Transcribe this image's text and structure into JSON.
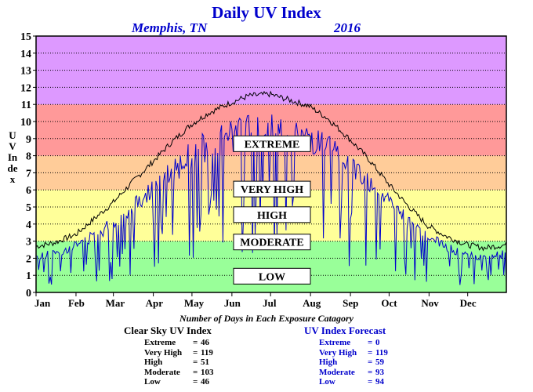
{
  "title": "Daily UV Index",
  "location": "Memphis, TN",
  "year": "2016",
  "ylabel": "UV Index",
  "counts_title": "Number of Days in Each Exposure Catagory",
  "clear_sky": {
    "title": "Clear Sky UV Index",
    "rows": [
      {
        "label": "Extreme",
        "eq": "=",
        "value": "46"
      },
      {
        "label": "Very High",
        "eq": "=",
        "value": "119"
      },
      {
        "label": "High",
        "eq": "=",
        "value": "51"
      },
      {
        "label": "Moderate",
        "eq": "=",
        "value": "103"
      },
      {
        "label": "Low",
        "eq": "=",
        "value": "46"
      }
    ]
  },
  "forecast": {
    "title": "UV Index Forecast",
    "rows": [
      {
        "label": "Extreme",
        "eq": "=",
        "value": "0"
      },
      {
        "label": "Very High",
        "eq": "=",
        "value": "119"
      },
      {
        "label": "High",
        "eq": "=",
        "value": "59"
      },
      {
        "label": "Moderate",
        "eq": "=",
        "value": "93"
      },
      {
        "label": "Low",
        "eq": "=",
        "value": "94"
      }
    ]
  },
  "chart_data": {
    "type": "line",
    "ylim": [
      0,
      15
    ],
    "yticks": [
      0,
      1,
      2,
      3,
      4,
      5,
      6,
      7,
      8,
      9,
      10,
      11,
      12,
      13,
      14,
      15
    ],
    "xlim": [
      1,
      366
    ],
    "months": [
      "Jan",
      "Feb",
      "Mar",
      "Apr",
      "May",
      "Jun",
      "Jul",
      "Aug",
      "Sep",
      "Oct",
      "Nov",
      "Dec"
    ],
    "grid": true,
    "bands": [
      {
        "label": "LOW",
        "from": 0,
        "to": 3,
        "color": "#99ff99",
        "label_y": 1.9
      },
      {
        "label": "MODERATE",
        "from": 3,
        "to": 6,
        "color": "#ffff99",
        "label_y": 5.9
      },
      {
        "label": "HIGH",
        "from": 6,
        "to": 8,
        "color": "#ffcc99",
        "label_y": 9.1
      },
      {
        "label": "VERY HIGH",
        "from": 8,
        "to": 11,
        "color": "#ff9999",
        "label_y": 12.1
      },
      {
        "label": "EXTREME",
        "from": 11,
        "to": 15,
        "color": "#dd99ff",
        "label_y": 17.4
      }
    ],
    "series": [
      {
        "name": "Clear Sky UV Index",
        "color": "#000000",
        "x": [
          1,
          15,
          32,
          46,
          60,
          75,
          91,
          105,
          121,
          135,
          152,
          166,
          182,
          196,
          213,
          227,
          244,
          258,
          274,
          288,
          305,
          319,
          335,
          349,
          366
        ],
        "values": [
          2.7,
          2.9,
          3.4,
          4.3,
          5.2,
          6.4,
          7.6,
          8.7,
          9.8,
          10.5,
          11.1,
          11.5,
          11.6,
          11.3,
          10.9,
          10.2,
          9.0,
          7.9,
          6.4,
          5.2,
          3.9,
          3.3,
          2.8,
          2.6,
          2.8
        ]
      },
      {
        "name": "UV Index Forecast",
        "color": "#0000cc",
        "x": [
          1,
          15,
          32,
          46,
          60,
          75,
          91,
          105,
          121,
          135,
          152,
          166,
          182,
          196,
          213,
          227,
          244,
          258,
          274,
          288,
          305,
          319,
          335,
          349,
          366
        ],
        "values": [
          2.2,
          2.4,
          2.9,
          3.5,
          4.2,
          5.3,
          6.4,
          7.4,
          8.4,
          9.1,
          9.6,
          9.9,
          10.0,
          9.8,
          9.4,
          8.8,
          7.9,
          6.9,
          5.6,
          4.5,
          3.4,
          2.8,
          2.3,
          2.1,
          2.4
        ]
      }
    ]
  }
}
